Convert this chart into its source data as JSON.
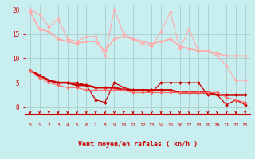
{
  "background_color": "#c8eef0",
  "grid_color": "#aacccc",
  "xlabel": "Vent moyen/en rafales ( kn/h )",
  "xlabel_color": "#cc0000",
  "tick_color": "#cc0000",
  "arrow_color": "#cc0000",
  "spine_color": "#cc0000",
  "xlim": [
    -0.5,
    23.5
  ],
  "ylim": [
    -1.5,
    21
  ],
  "yticks": [
    0,
    5,
    10,
    15,
    20
  ],
  "xticks": [
    0,
    1,
    2,
    3,
    4,
    5,
    6,
    7,
    8,
    9,
    10,
    11,
    12,
    13,
    14,
    15,
    16,
    17,
    18,
    19,
    20,
    21,
    22,
    23
  ],
  "series": [
    {
      "x": [
        0,
        1,
        2,
        3,
        4,
        5,
        6,
        7,
        8,
        9,
        10,
        11,
        12,
        13,
        14,
        15,
        16,
        17,
        18,
        19,
        20,
        21,
        22,
        23
      ],
      "y": [
        20.0,
        19.0,
        16.5,
        18.0,
        14.0,
        13.5,
        14.5,
        14.5,
        10.5,
        20.0,
        15.0,
        14.0,
        13.0,
        12.5,
        15.5,
        19.5,
        12.0,
        16.0,
        11.5,
        11.5,
        10.5,
        8.5,
        5.5,
        5.5
      ],
      "color": "#ffaaaa",
      "lw": 0.8,
      "marker": "D",
      "ms": 2.0
    },
    {
      "x": [
        0,
        1,
        2,
        3,
        4,
        5,
        6,
        7,
        8,
        9,
        10,
        11,
        12,
        13,
        14,
        15,
        16,
        17,
        18,
        19,
        20,
        21,
        22,
        23
      ],
      "y": [
        19.5,
        16.0,
        15.5,
        14.0,
        13.5,
        13.0,
        13.5,
        13.5,
        11.5,
        14.0,
        14.5,
        14.0,
        13.5,
        13.0,
        13.5,
        14.0,
        12.5,
        12.0,
        11.5,
        11.5,
        11.0,
        10.5,
        10.5,
        10.5
      ],
      "color": "#ffaaaa",
      "lw": 1.2,
      "marker": "D",
      "ms": 2.0
    },
    {
      "x": [
        0,
        1,
        2,
        3,
        4,
        5,
        6,
        7,
        8,
        9,
        10,
        11,
        12,
        13,
        14,
        15,
        16,
        17,
        18,
        19,
        20,
        21,
        22,
        23
      ],
      "y": [
        7.5,
        6.5,
        5.5,
        5.0,
        5.0,
        5.0,
        4.5,
        1.5,
        1.0,
        5.0,
        4.0,
        3.5,
        3.5,
        3.0,
        5.0,
        5.0,
        5.0,
        5.0,
        5.0,
        2.5,
        2.5,
        0.5,
        1.5,
        0.5
      ],
      "color": "#cc0000",
      "lw": 0.9,
      "marker": "D",
      "ms": 2.0
    },
    {
      "x": [
        0,
        1,
        2,
        3,
        4,
        5,
        6,
        7,
        8,
        9,
        10,
        11,
        12,
        13,
        14,
        15,
        16,
        17,
        18,
        19,
        20,
        21,
        22,
        23
      ],
      "y": [
        7.5,
        6.5,
        5.5,
        5.0,
        5.0,
        4.5,
        4.5,
        4.0,
        4.0,
        4.0,
        3.5,
        3.5,
        3.5,
        3.5,
        3.5,
        3.5,
        3.0,
        3.0,
        3.0,
        3.0,
        2.5,
        2.5,
        2.5,
        2.5
      ],
      "color": "#cc0000",
      "lw": 1.8,
      "marker": "D",
      "ms": 2.0
    },
    {
      "x": [
        0,
        1,
        2,
        3,
        4,
        5,
        6,
        7,
        8,
        9,
        10,
        11,
        12,
        13,
        14,
        15,
        16,
        17,
        18,
        19,
        20,
        21,
        22,
        23
      ],
      "y": [
        7.5,
        6.0,
        5.0,
        4.5,
        4.0,
        4.0,
        3.5,
        3.5,
        3.5,
        3.5,
        3.5,
        3.0,
        3.0,
        3.0,
        3.0,
        3.0,
        3.0,
        3.0,
        3.0,
        3.0,
        3.0,
        2.0,
        1.5,
        1.0
      ],
      "color": "#ff6666",
      "lw": 0.8,
      "marker": "D",
      "ms": 2.0
    }
  ]
}
